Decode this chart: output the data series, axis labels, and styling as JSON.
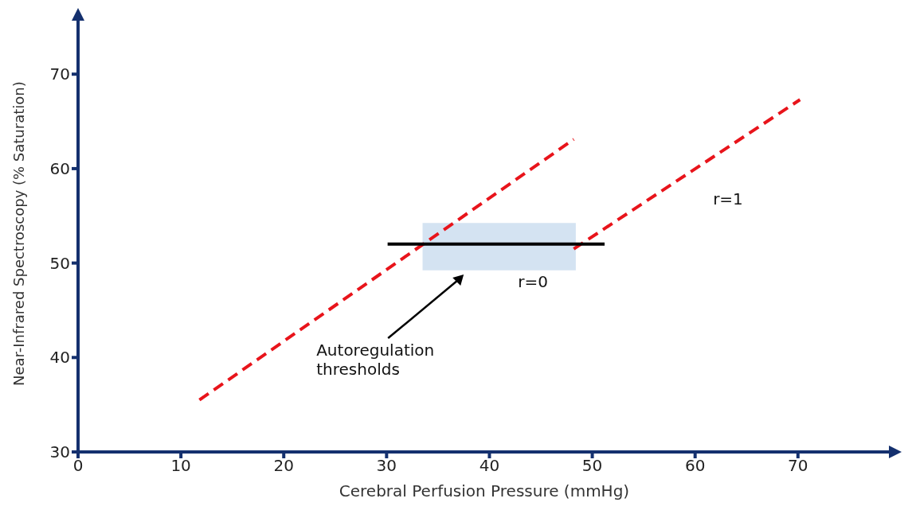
{
  "chart_data": {
    "type": "line",
    "xlabel": "Cerebral Perfusion Pressure (mmHg)",
    "ylabel": "Near-Infrared Spectroscopy (% Saturation)",
    "xlim": [
      0,
      79
    ],
    "ylim": [
      30,
      76
    ],
    "xticks": [
      0,
      10,
      20,
      30,
      40,
      50,
      60,
      70
    ],
    "yticks": [
      30,
      40,
      50,
      60,
      70
    ],
    "marker": "none",
    "series": [
      {
        "color": "#e8141b",
        "line_style": "dashed",
        "x": [
          11.8,
          48.2
        ],
        "values": [
          35.5,
          63.1
        ]
      },
      {
        "color": "#e8141b",
        "line_style": "dashed",
        "x": [
          48.2,
          70.2
        ],
        "values": [
          51.5,
          67.3
        ]
      },
      {
        "color": "#000000",
        "line_style": "solid",
        "x": [
          30.1,
          51.2
        ],
        "values": [
          52,
          52
        ]
      }
    ],
    "bands": [
      {
        "axis": "x",
        "from": 33.5,
        "to": 48.4,
        "color": "#c5d9ee"
      }
    ],
    "annotations": [
      "r=1",
      "r=0",
      "Autoregulation thresholds"
    ]
  }
}
